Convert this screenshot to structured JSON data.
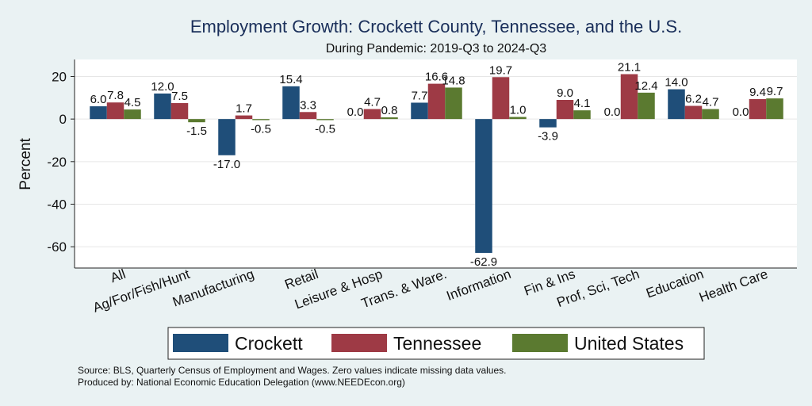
{
  "chart_data": {
    "type": "bar",
    "title": "Employment Growth: Crockett County, Tennessee, and the U.S.",
    "subtitle": "During Pandemic: 2019-Q3 to 2024-Q3",
    "ylabel": "Percent",
    "xlabel": "",
    "ylim": [
      -70,
      28
    ],
    "yticks": [
      20,
      0,
      -20,
      -40,
      -60
    ],
    "grid": true,
    "legend_position": "bottom",
    "categories": [
      "All",
      "Ag/For/Fish/Hunt",
      "Manufacturing",
      "Retail",
      "Leisure & Hosp",
      "Trans. & Ware.",
      "Information",
      "Fin & Ins",
      "Prof, Sci, Tech",
      "Education",
      "Health Care"
    ],
    "series": [
      {
        "name": "Crockett",
        "color": "#1f4e79",
        "values": [
          6.0,
          12.0,
          -17.0,
          15.4,
          0.0,
          7.7,
          -62.9,
          -3.9,
          0.0,
          14.0,
          0.0
        ]
      },
      {
        "name": "Tennessee",
        "color": "#9e3a45",
        "values": [
          7.8,
          7.5,
          1.7,
          3.3,
          4.7,
          16.6,
          19.7,
          9.0,
          21.1,
          6.2,
          9.4
        ]
      },
      {
        "name": "United States",
        "color": "#5b7a30",
        "values": [
          4.5,
          -1.5,
          -0.5,
          -0.5,
          0.8,
          14.8,
          1.0,
          4.1,
          12.4,
          4.7,
          9.7
        ]
      }
    ]
  },
  "footer": {
    "source": "Source: BLS, Quarterly Census of Employment and Wages. Zero values indicate missing data values.",
    "produced_by": "Produced by: National Economic Education Delegation (www.NEEDEcon.org)"
  }
}
